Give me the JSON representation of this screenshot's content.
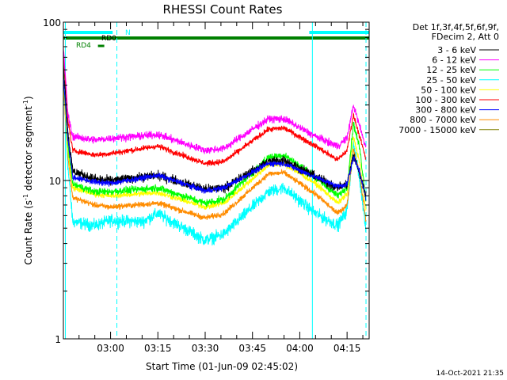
{
  "chart_data": {
    "type": "line",
    "title": "RHESSI Count Rates",
    "xlabel": "Start Time (01-Jun-09 02:45:02)",
    "ylabel": "Count Rate (s",
    "ylabel_sup": "-1",
    "ylabel_tail": " detector segment",
    "ylabel_sup2": "-1",
    "ylabel_close": ")",
    "yscale": "log",
    "ylim": [
      1,
      100
    ],
    "xlim": [
      "02:45:02",
      "04:22:00"
    ],
    "x_ticks": [
      "03:00",
      "03:15",
      "03:30",
      "03:45",
      "04:00",
      "04:15"
    ],
    "y_ticks": [
      "1",
      "10",
      "100"
    ],
    "legend_header": [
      "Det 1f,3f,4f,5f,6f,9f,",
      "FDecim 2, Att 0"
    ],
    "legend_placement": "right",
    "timestamp": "14-Oct-2021 21:35",
    "attenuator_bars": [
      {
        "label": "N",
        "color": "#00ffff",
        "segments": [
          [
            "02:45:02",
            "03:00:40"
          ],
          [
            "04:03:00",
            "04:22:00"
          ]
        ]
      },
      {
        "label": "RD0",
        "color": "#008000",
        "segments": [
          [
            "02:45:02",
            "04:22:00"
          ]
        ]
      },
      {
        "label": "RD4",
        "color": "#008000",
        "segments": [
          [
            "02:56:00",
            "02:58:00"
          ]
        ]
      }
    ],
    "vlines_solid": [
      "02:45:40",
      "04:04:00"
    ],
    "vlines_dashed": [
      "03:02:00",
      "04:21:00"
    ],
    "series": [
      {
        "name": "3 - 6 keV",
        "color": "#000000",
        "noise": 0.1,
        "points": [
          [
            "02:45:02",
            55
          ],
          [
            "02:46:30",
            20
          ],
          [
            "02:48:00",
            11.5
          ],
          [
            "02:55:00",
            10.2
          ],
          [
            "03:00:00",
            10.0
          ],
          [
            "03:15:00",
            10.8
          ],
          [
            "03:30:00",
            8.8
          ],
          [
            "03:36:00",
            9.0
          ],
          [
            "03:50:00",
            13.2
          ],
          [
            "03:55:00",
            13.5
          ],
          [
            "04:05:00",
            10.6
          ],
          [
            "04:12:00",
            9.0
          ],
          [
            "04:15:00",
            9.5
          ],
          [
            "04:17:00",
            14.5
          ],
          [
            "04:19:00",
            11.0
          ],
          [
            "04:21:00",
            8.0
          ]
        ]
      },
      {
        "name": "6 - 12 keV",
        "color": "#ff00ff",
        "noise": 0.08,
        "points": [
          [
            "02:45:02",
            70
          ],
          [
            "02:46:30",
            26
          ],
          [
            "02:48:00",
            19
          ],
          [
            "02:55:00",
            18
          ],
          [
            "03:00:00",
            18.5
          ],
          [
            "03:15:00",
            19.5
          ],
          [
            "03:30:00",
            15.5
          ],
          [
            "03:36:00",
            16.0
          ],
          [
            "03:50:00",
            24.5
          ],
          [
            "03:55:00",
            24.5
          ],
          [
            "04:05:00",
            19.0
          ],
          [
            "04:12:00",
            16.5
          ],
          [
            "04:15:00",
            18.5
          ],
          [
            "04:17:00",
            30.0
          ],
          [
            "04:19:00",
            22.0
          ],
          [
            "04:21:00",
            16.0
          ]
        ]
      },
      {
        "name": "12 - 25 keV",
        "color": "#00ff00",
        "noise": 0.08,
        "points": [
          [
            "02:45:02",
            45
          ],
          [
            "02:46:30",
            17
          ],
          [
            "02:48:00",
            9.5
          ],
          [
            "02:55:00",
            8.5
          ],
          [
            "03:00:00",
            8.5
          ],
          [
            "03:15:00",
            9.0
          ],
          [
            "03:30:00",
            7.2
          ],
          [
            "03:36:00",
            7.6
          ],
          [
            "03:50:00",
            14.0
          ],
          [
            "03:55:00",
            14.5
          ],
          [
            "04:05:00",
            10.5
          ],
          [
            "04:12:00",
            8.0
          ],
          [
            "04:15:00",
            9.0
          ],
          [
            "04:17:00",
            23.0
          ],
          [
            "04:19:00",
            16.0
          ],
          [
            "04:21:00",
            7.5
          ]
        ]
      },
      {
        "name": "25 - 50 keV",
        "color": "#00ffff",
        "noise": 0.13,
        "points": [
          [
            "02:45:02",
            40
          ],
          [
            "02:46:30",
            12
          ],
          [
            "02:48:00",
            5.5
          ],
          [
            "02:55:00",
            5.2
          ],
          [
            "03:00:00",
            5.6
          ],
          [
            "03:10:00",
            5.5
          ],
          [
            "03:15:00",
            6.2
          ],
          [
            "03:30:00",
            4.2
          ],
          [
            "03:36:00",
            4.6
          ],
          [
            "03:50:00",
            8.5
          ],
          [
            "03:55:00",
            9.0
          ],
          [
            "04:05:00",
            6.2
          ],
          [
            "04:12:00",
            5.2
          ],
          [
            "04:15:00",
            6.5
          ],
          [
            "04:17:00",
            17.0
          ],
          [
            "04:19:00",
            10.0
          ],
          [
            "04:21:00",
            5.0
          ]
        ]
      },
      {
        "name": "50 - 100 keV",
        "color": "#ffff00",
        "noise": 0.06,
        "points": [
          [
            "02:45:02",
            40
          ],
          [
            "02:46:30",
            15
          ],
          [
            "02:48:00",
            9.0
          ],
          [
            "02:55:00",
            8.2
          ],
          [
            "03:00:00",
            8.0
          ],
          [
            "03:15:00",
            8.4
          ],
          [
            "03:30:00",
            6.8
          ],
          [
            "03:36:00",
            7.2
          ],
          [
            "03:50:00",
            12.5
          ],
          [
            "03:55:00",
            12.8
          ],
          [
            "04:05:00",
            9.6
          ],
          [
            "04:12:00",
            7.2
          ],
          [
            "04:15:00",
            8.2
          ],
          [
            "04:17:00",
            19.0
          ],
          [
            "04:19:00",
            13.0
          ],
          [
            "04:21:00",
            6.5
          ]
        ]
      },
      {
        "name": "100 - 300 keV",
        "color": "#ff0000",
        "noise": 0.06,
        "points": [
          [
            "02:45:02",
            65
          ],
          [
            "02:46:30",
            24
          ],
          [
            "02:48:00",
            15.5
          ],
          [
            "02:55:00",
            14.5
          ],
          [
            "03:00:00",
            14.8
          ],
          [
            "03:15:00",
            16.5
          ],
          [
            "03:30:00",
            12.8
          ],
          [
            "03:36:00",
            13.2
          ],
          [
            "03:50:00",
            21.0
          ],
          [
            "03:55:00",
            21.5
          ],
          [
            "04:05:00",
            16.5
          ],
          [
            "04:12:00",
            13.5
          ],
          [
            "04:15:00",
            15.5
          ],
          [
            "04:17:00",
            26.0
          ],
          [
            "04:19:00",
            19.0
          ],
          [
            "04:21:00",
            13.5
          ]
        ]
      },
      {
        "name": "300 - 800 keV",
        "color": "#0000ff",
        "noise": 0.06,
        "points": [
          [
            "02:45:02",
            45
          ],
          [
            "02:46:30",
            18
          ],
          [
            "02:48:00",
            10.5
          ],
          [
            "02:55:00",
            9.8
          ],
          [
            "03:00:00",
            9.6
          ],
          [
            "03:15:00",
            10.8
          ],
          [
            "03:30:00",
            8.6
          ],
          [
            "03:36:00",
            9.0
          ],
          [
            "03:50:00",
            12.8
          ],
          [
            "03:55:00",
            12.8
          ],
          [
            "04:05:00",
            10.5
          ],
          [
            "04:12:00",
            9.2
          ],
          [
            "04:15:00",
            9.5
          ],
          [
            "04:17:00",
            14.0
          ],
          [
            "04:19:00",
            11.5
          ],
          [
            "04:21:00",
            7.5
          ]
        ]
      },
      {
        "name": "800 - 7000 keV",
        "color": "#ff8c00",
        "noise": 0.06,
        "points": [
          [
            "02:45:02",
            40
          ],
          [
            "02:46:30",
            14
          ],
          [
            "02:48:00",
            7.8
          ],
          [
            "02:55:00",
            7.0
          ],
          [
            "03:00:00",
            6.8
          ],
          [
            "03:15:00",
            7.2
          ],
          [
            "03:30:00",
            5.8
          ],
          [
            "03:36:00",
            6.2
          ],
          [
            "03:50:00",
            11.0
          ],
          [
            "03:55:00",
            11.2
          ],
          [
            "04:05:00",
            8.2
          ],
          [
            "04:12:00",
            6.2
          ],
          [
            "04:15:00",
            7.0
          ],
          [
            "04:17:00",
            16.0
          ],
          [
            "04:19:00",
            11.0
          ],
          [
            "04:21:00",
            5.5
          ]
        ]
      },
      {
        "name": "7000 - 15000 keV",
        "color": "#808000",
        "noise": 0.0,
        "points": []
      }
    ]
  }
}
